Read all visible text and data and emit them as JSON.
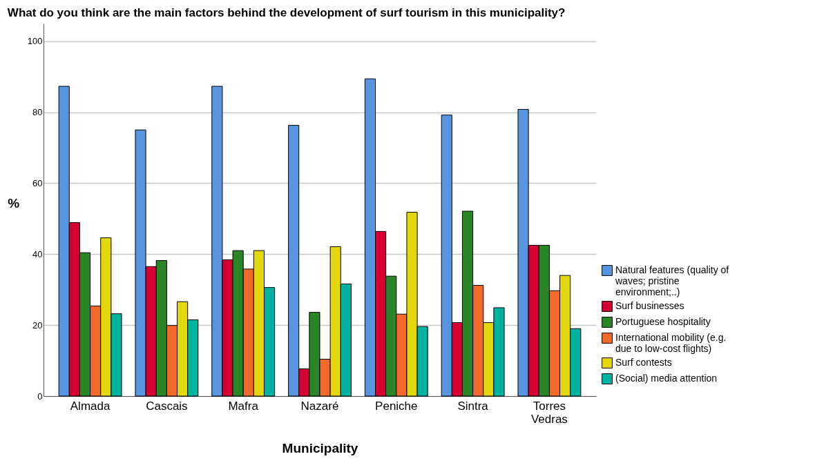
{
  "chart_data": {
    "type": "bar",
    "title": "What do you think are the main factors behind the development of surf tourism in this municipality?",
    "xlabel": "Municipality",
    "ylabel": "%",
    "categories": [
      "Almada",
      "Cascais",
      "Mafra",
      "Nazaré",
      "Peniche",
      "Sintra",
      "Torres Vedras"
    ],
    "series": [
      {
        "name": "Natural features (quality of waves; pristine environment;..)",
        "color": "#5894e0",
        "values": [
          87.3,
          75.0,
          87.3,
          76.3,
          89.4,
          79.2,
          80.8
        ]
      },
      {
        "name": "Surf businesses",
        "color": "#d50032",
        "values": [
          48.9,
          36.5,
          38.4,
          7.7,
          46.4,
          20.7,
          42.5
        ]
      },
      {
        "name": "Portuguese hospitality",
        "color": "#2a8526",
        "values": [
          40.4,
          38.2,
          41.0,
          23.6,
          33.8,
          52.1,
          42.5
        ]
      },
      {
        "name": "International mobility (e.g. due to low-cost flights)",
        "color": "#f26a2a",
        "values": [
          25.4,
          19.9,
          35.8,
          10.4,
          23.1,
          31.2,
          29.7
        ]
      },
      {
        "name": "Surf contests",
        "color": "#e3d80e",
        "values": [
          44.6,
          26.6,
          41.0,
          42.1,
          51.8,
          20.7,
          34.0
        ]
      },
      {
        "name": "(Social) media attention",
        "color": "#00b3a0",
        "values": [
          23.2,
          21.5,
          30.6,
          31.6,
          19.6,
          24.9,
          19.0
        ]
      }
    ],
    "ylim": [
      0,
      105
    ],
    "yticks": [
      0,
      20,
      40,
      60,
      80,
      100
    ],
    "grid": "y",
    "legend": "right"
  }
}
